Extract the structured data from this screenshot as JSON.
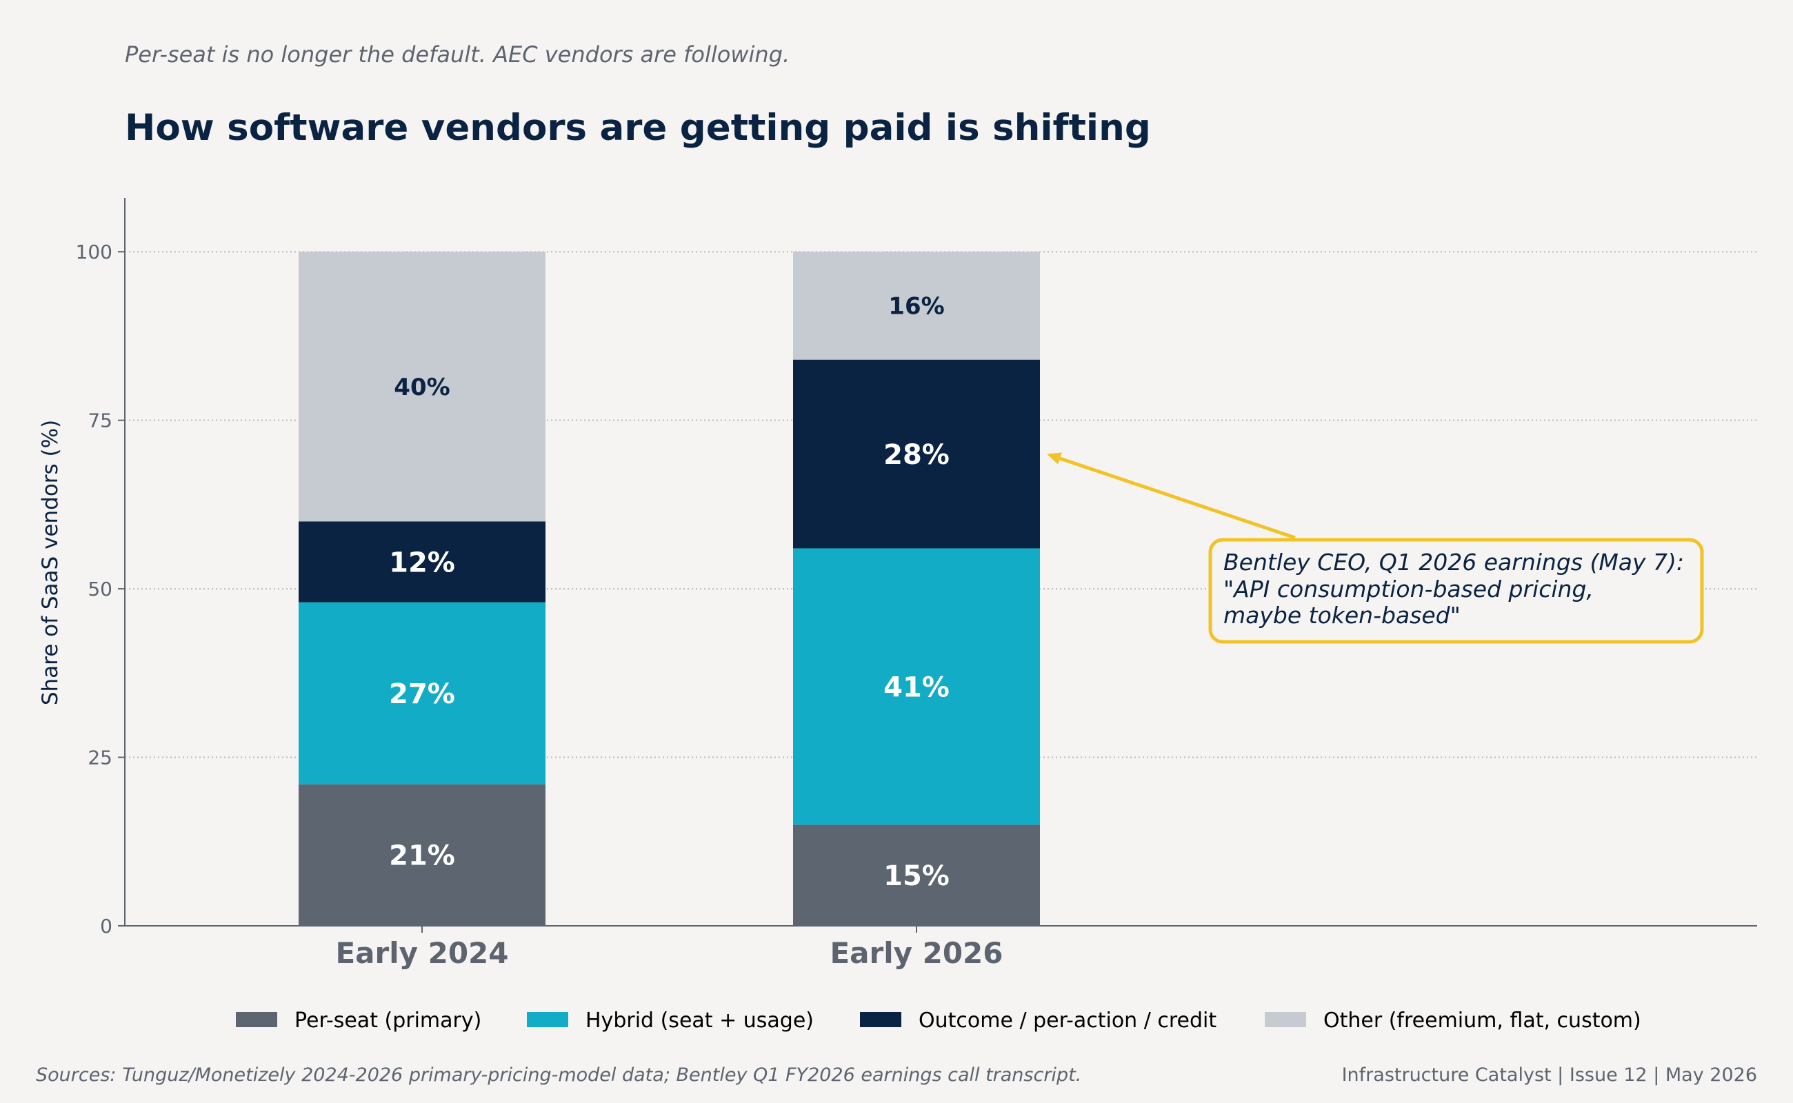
{
  "header": {
    "subtitle": "Per-seat is no longer the default. AEC vendors are following.",
    "title": "How software vendors are getting paid is shifting"
  },
  "colors": {
    "per_seat": "#5c6570",
    "hybrid": "#13acc7",
    "outcome": "#0b2342",
    "other": "#c6cad1",
    "accent": "#f2c326",
    "background": "#f5f4f2"
  },
  "chart_data": {
    "type": "bar",
    "stacked": true,
    "categories": [
      "Early 2024",
      "Early 2026"
    ],
    "series": [
      {
        "name": "Per-seat (primary)",
        "color_key": "per_seat",
        "values": [
          21,
          15
        ],
        "labels": [
          "21%",
          "15%"
        ]
      },
      {
        "name": "Hybrid (seat + usage)",
        "color_key": "hybrid",
        "values": [
          27,
          41
        ],
        "labels": [
          "27%",
          "41%"
        ]
      },
      {
        "name": "Outcome / per-action / credit",
        "color_key": "outcome",
        "values": [
          12,
          28
        ],
        "labels": [
          "12%",
          "28%"
        ]
      },
      {
        "name": "Other (freemium, flat, custom)",
        "color_key": "other",
        "values": [
          40,
          16
        ],
        "labels": [
          "40%",
          "16%"
        ]
      }
    ],
    "ylabel": "Share of SaaS vendors (%)",
    "xlabel": "",
    "ylim": [
      0,
      108
    ],
    "yticks": [
      "0",
      "25",
      "50",
      "75",
      "100"
    ],
    "grid": "horizontal dotted",
    "legend": "bottom",
    "annotation": {
      "lines": [
        "Bentley CEO, Q1 2026 earnings (May 7):",
        "\"API consumption-based pricing,",
        "maybe token-based\""
      ],
      "target_category": "Early 2026",
      "target_value": 70
    }
  },
  "footer": {
    "sources": "Sources: Tunguz/Monetizely 2024-2026 primary-pricing-model data; Bentley Q1 FY2026 earnings call transcript.",
    "right": "Infrastructure Catalyst  |  Issue 12  |  May 2026"
  }
}
